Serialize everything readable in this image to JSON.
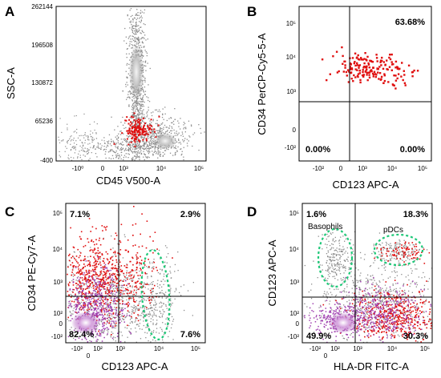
{
  "chart_data": [
    {
      "panel": "A",
      "type": "scatter",
      "xlabel": "CD45 V500-A",
      "ylabel": "SSC-A",
      "x_ticks": [
        "-10⁰",
        "0",
        "10³",
        "10⁴",
        "10⁵"
      ],
      "y_ticks": [
        "262144",
        "196508",
        "130872",
        "65236",
        "-400"
      ],
      "ylim": [
        -400,
        262144
      ],
      "x_scale": "biexponential",
      "series": [
        {
          "color": "#8c8c8c",
          "description_points": [
            [
              0,
              240000
            ],
            [
              0,
              160000
            ],
            [
              0,
              100000
            ],
            [
              0,
              60000
            ],
            [
              1000,
              40000
            ],
            [
              2000,
              30000
            ],
            [
              20000,
              20000
            ]
          ]
        },
        {
          "color": "#e01010",
          "description_points": [
            [
              300,
              20000
            ],
            [
              500,
              30000
            ],
            [
              700,
              40000
            ],
            [
              900,
              30000
            ],
            [
              1100,
              25000
            ],
            [
              600,
              50000
            ],
            [
              800,
              15000
            ],
            [
              400,
              10000
            ]
          ]
        }
      ]
    },
    {
      "panel": "B",
      "type": "scatter",
      "xlabel": "CD123 APC-A",
      "ylabel": "CD34 PerCP-Cy5-5-A",
      "x_ticks": [
        "-10²",
        "0",
        "10³",
        "10⁴",
        "10⁵"
      ],
      "y_ticks": [
        "10⁵",
        "10⁴",
        "10³",
        "0",
        "-10²"
      ],
      "x_scale": "biexponential",
      "y_scale": "biexponential",
      "quadrants": {
        "top_left": "",
        "top_right": "63.68%",
        "bottom_left": "0.00%",
        "bottom_right": "0.00%"
      },
      "series": [
        {
          "color": "#e01010",
          "description_points": [
            [
              100,
              5000
            ],
            [
              300,
              8000
            ],
            [
              800,
              10000
            ],
            [
              2000,
              9000
            ],
            [
              5000,
              6000
            ],
            [
              20000,
              3000
            ]
          ]
        }
      ]
    },
    {
      "panel": "C",
      "type": "scatter",
      "xlabel": "CD123 APC-A",
      "ylabel": "CD34 PE-Cy7-A",
      "x_ticks": [
        "-10²",
        "0",
        "10²",
        "10³",
        "10⁴",
        "10⁵"
      ],
      "y_ticks": [
        "10⁵",
        "10⁴",
        "10³",
        "10²",
        "0",
        "-10²"
      ],
      "x_scale": "biexponential",
      "y_scale": "biexponential",
      "quadrants": {
        "top_left": "7.1%",
        "top_right": "2.9%",
        "bottom_left": "82.4%",
        "bottom_right": "7.6%"
      },
      "gates": [
        {
          "label": "",
          "shape": "ellipse",
          "color": "#1ec878"
        }
      ]
    },
    {
      "panel": "D",
      "type": "scatter",
      "xlabel": "HLA-DR FITC-A",
      "ylabel": "CD123 APC-A",
      "x_ticks": [
        "-10²",
        "0",
        "10²",
        "10³",
        "10⁴",
        "10⁵"
      ],
      "y_ticks": [
        "10⁵",
        "10⁴",
        "10³",
        "10²",
        "0",
        "-10²"
      ],
      "x_scale": "biexponential",
      "y_scale": "biexponential",
      "quadrants": {
        "top_left": "1.6%",
        "top_right": "18.3%",
        "bottom_left": "49.9%",
        "bottom_right": "30.3%"
      },
      "gates": [
        {
          "label": "Basophils",
          "shape": "ellipse",
          "color": "#1ec878"
        },
        {
          "label": "pDCs",
          "shape": "ellipse",
          "color": "#1ec878"
        }
      ]
    }
  ],
  "colors": {
    "background_gray": "#8c8c8c",
    "highlight_red": "#e01010",
    "purple": "#a040b0",
    "gate_green": "#1ec878"
  }
}
